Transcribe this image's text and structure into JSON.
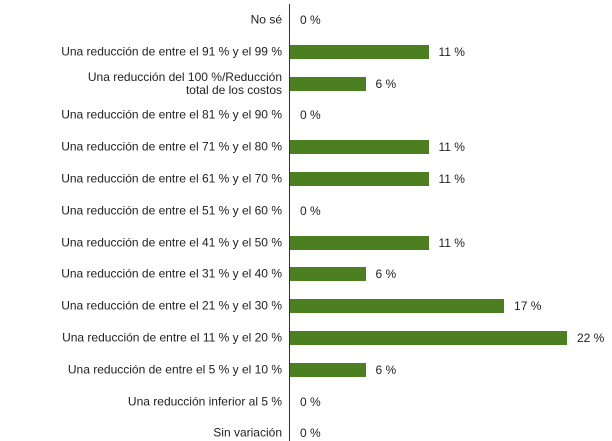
{
  "chart_data": {
    "type": "bar",
    "orientation": "horizontal",
    "color": "#4b7f22",
    "categories": [
      "No sé",
      "Una reducción de entre el 91 % y el 99 %",
      "Una reducción del 100 %/Reducción\ntotal de los costos",
      "Una reducción de entre el 81 % y el 90 %",
      "Una reducción de entre el 71 % y el 80 %",
      "Una reducción de entre el 61 % y el 70 %",
      "Una reducción de entre el 51 % y el 60 %",
      "Una reducción de entre el 41 % y el 50 %",
      "Una reducción de entre el 31 % y el 40 %",
      "Una reducción de entre el 21 % y el 30 %",
      "Una reducción de entre el 11 % y el 20 %",
      "Una reducción de entre el 5 % y el 10 %",
      "Una reducción inferior al 5 %",
      "Sin variación"
    ],
    "values": [
      0,
      11,
      6,
      0,
      11,
      11,
      0,
      11,
      6,
      17,
      22,
      6,
      0,
      0
    ],
    "value_labels": [
      "0 %",
      "11 %",
      "6 %",
      "0 %",
      "11 %",
      "11 %",
      "0 %",
      "11 %",
      "6 %",
      "17 %",
      "22 %",
      "6 %",
      "0 %",
      "0 %"
    ]
  }
}
